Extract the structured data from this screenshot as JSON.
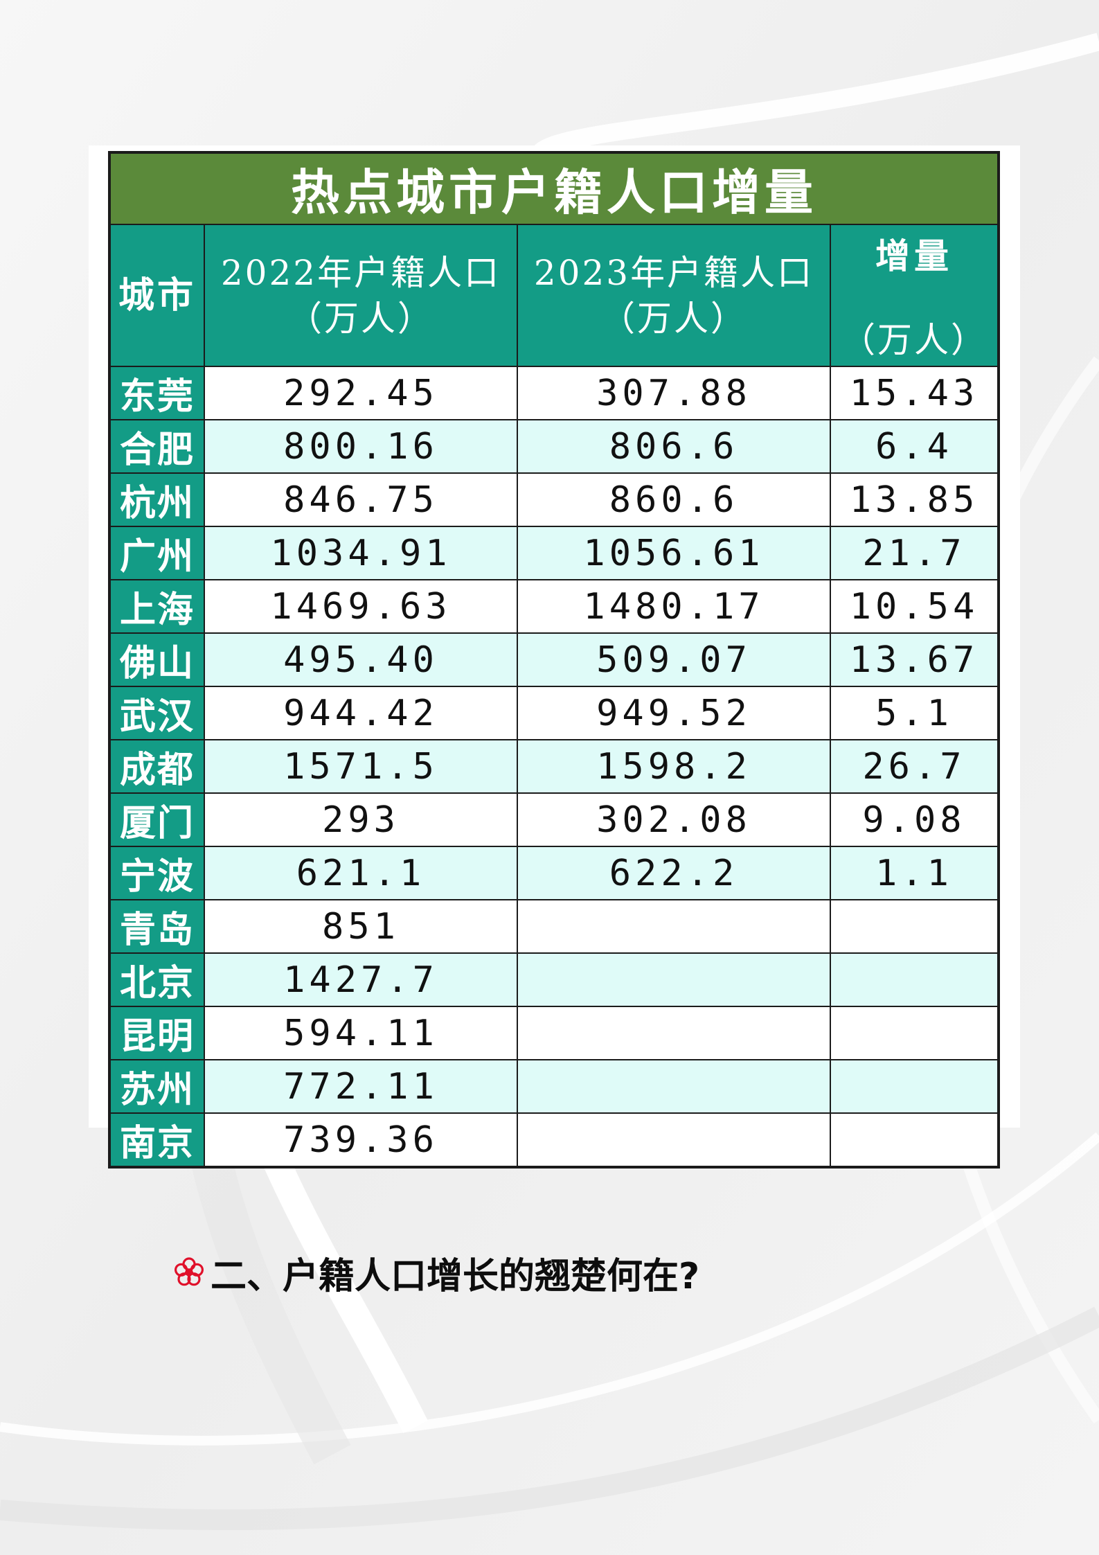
{
  "table": {
    "title": "热点城市户籍人口增量",
    "headers": {
      "city": "城市",
      "pop2022_line1": "2022年户籍人口",
      "pop2022_line2": "（万人）",
      "pop2023_line1": "2023年户籍人口",
      "pop2023_line2": "（万人）",
      "increase_line1": "增量",
      "increase_line2": "（万人）"
    },
    "rows": [
      {
        "city": "东莞",
        "pop2022": "292.45",
        "pop2023": "307.88",
        "increase": "15.43"
      },
      {
        "city": "合肥",
        "pop2022": "800.16",
        "pop2023": "806.6",
        "increase": "6.4"
      },
      {
        "city": "杭州",
        "pop2022": "846.75",
        "pop2023": "860.6",
        "increase": "13.85"
      },
      {
        "city": "广州",
        "pop2022": "1034.91",
        "pop2023": "1056.61",
        "increase": "21.7"
      },
      {
        "city": "上海",
        "pop2022": "1469.63",
        "pop2023": "1480.17",
        "increase": "10.54"
      },
      {
        "city": "佛山",
        "pop2022": "495.40",
        "pop2023": "509.07",
        "increase": "13.67"
      },
      {
        "city": "武汉",
        "pop2022": "944.42",
        "pop2023": "949.52",
        "increase": "5.1"
      },
      {
        "city": "成都",
        "pop2022": "1571.5",
        "pop2023": "1598.2",
        "increase": "26.7"
      },
      {
        "city": "厦门",
        "pop2022": "293",
        "pop2023": "302.08",
        "increase": "9.08"
      },
      {
        "city": "宁波",
        "pop2022": "621.1",
        "pop2023": "622.2",
        "increase": "1.1"
      },
      {
        "city": "青岛",
        "pop2022": "851",
        "pop2023": "",
        "increase": ""
      },
      {
        "city": "北京",
        "pop2022": "1427.7",
        "pop2023": "",
        "increase": ""
      },
      {
        "city": "昆明",
        "pop2022": "594.11",
        "pop2023": "",
        "increase": ""
      },
      {
        "city": "苏州",
        "pop2022": "772.11",
        "pop2023": "",
        "increase": ""
      },
      {
        "city": "南京",
        "pop2022": "739.36",
        "pop2023": "",
        "increase": ""
      }
    ]
  },
  "section": {
    "icon": "flower-icon",
    "heading": "二、户籍人口增长的翘楚何在?"
  },
  "colors": {
    "title_bg": "#5b8a3a",
    "header_bg": "#139c86",
    "row_alt_bg": "#dffbf8",
    "icon_red": "#e0102a"
  }
}
